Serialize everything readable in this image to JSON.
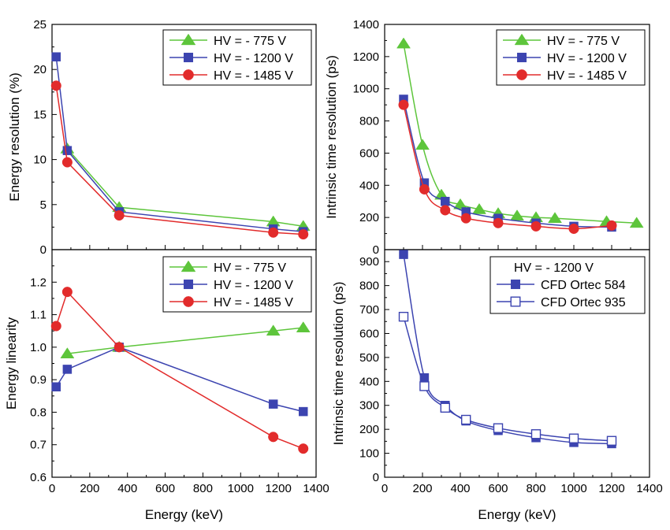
{
  "chart_data": [
    {
      "type": "line",
      "panel": "top-left",
      "xlabel": "",
      "ylabel": "Energy resolution (%)",
      "xlim": [
        0,
        1400
      ],
      "ylim": [
        0,
        25
      ],
      "x_ticks": [
        "0",
        "200",
        "400",
        "600",
        "800",
        "1000",
        "1200",
        "1400"
      ],
      "x_ticks_shown": false,
      "y_ticks": [
        "0",
        "5",
        "10",
        "15",
        "20",
        "25"
      ],
      "legend": "top-right",
      "series": [
        {
          "name": "HV = - 775 V",
          "color": "#5dc53b",
          "marker": "triangle",
          "x": [
            81,
            356,
            1173,
            1332
          ],
          "y": [
            11.2,
            4.7,
            3.1,
            2.6
          ]
        },
        {
          "name": "HV = - 1200 V",
          "color": "#3c44b0",
          "marker": "square",
          "x": [
            22,
            81,
            356,
            1173,
            1332
          ],
          "y": [
            21.4,
            11.0,
            4.2,
            2.3,
            2.0
          ]
        },
        {
          "name": "HV = - 1485 V",
          "color": "#e22b2b",
          "marker": "circle",
          "x": [
            22,
            81,
            356,
            1173,
            1332
          ],
          "y": [
            18.2,
            9.7,
            3.8,
            1.9,
            1.7
          ]
        }
      ]
    },
    {
      "type": "line",
      "panel": "top-right",
      "xlabel": "",
      "ylabel": "Intrinsic time resolution (ps)",
      "xlim": [
        0,
        1400
      ],
      "ylim": [
        0,
        1400
      ],
      "x_ticks": [
        "0",
        "200",
        "400",
        "600",
        "800",
        "1000",
        "1200",
        "1400"
      ],
      "x_ticks_shown": false,
      "y_ticks": [
        "0",
        "200",
        "400",
        "600",
        "800",
        "1000",
        "1200",
        "1400"
      ],
      "legend": "top-right",
      "series": [
        {
          "name": "HV = - 775 V",
          "color": "#5dc53b",
          "marker": "triangle",
          "x": [
            100,
            200,
            300,
            400,
            500,
            600,
            700,
            800,
            900,
            1173,
            1332
          ],
          "y": [
            1280,
            650,
            340,
            280,
            250,
            225,
            210,
            200,
            195,
            175,
            165
          ]
        },
        {
          "name": "HV = - 1200 V",
          "color": "#3c44b0",
          "marker": "square",
          "x": [
            100,
            210,
            320,
            430,
            600,
            800,
            1000,
            1200
          ],
          "y": [
            935,
            415,
            300,
            235,
            195,
            165,
            145,
            140
          ]
        },
        {
          "name": "HV = - 1485 V",
          "color": "#e22b2b",
          "marker": "circle",
          "x": [
            100,
            210,
            320,
            430,
            600,
            800,
            1000,
            1200
          ],
          "y": [
            900,
            375,
            245,
            195,
            165,
            145,
            130,
            150
          ]
        }
      ]
    },
    {
      "type": "line",
      "panel": "bottom-left",
      "xlabel": "Energy (keV)",
      "ylabel": "Energy linearity",
      "xlim": [
        0,
        1400
      ],
      "ylim": [
        0.6,
        1.3
      ],
      "x_ticks": [
        "0",
        "200",
        "400",
        "600",
        "800",
        "1000",
        "1200",
        "1400"
      ],
      "x_ticks_shown": true,
      "y_ticks": [
        "0.6",
        "0.7",
        "0.8",
        "0.9",
        "1.0",
        "1.1",
        "1.2"
      ],
      "legend": "top-right",
      "series": [
        {
          "name": "HV = - 775 V",
          "color": "#5dc53b",
          "marker": "triangle",
          "x": [
            81,
            356,
            1173,
            1332
          ],
          "y": [
            0.98,
            1.0,
            1.05,
            1.06
          ]
        },
        {
          "name": "HV = - 1200 V",
          "color": "#3c44b0",
          "marker": "square",
          "x": [
            22,
            81,
            356,
            1173,
            1332
          ],
          "y": [
            0.878,
            0.932,
            1.0,
            0.825,
            0.802
          ]
        },
        {
          "name": "HV = - 1485 V",
          "color": "#e22b2b",
          "marker": "circle",
          "x": [
            22,
            81,
            356,
            1173,
            1332
          ],
          "y": [
            1.065,
            1.17,
            1.0,
            0.724,
            0.688
          ]
        }
      ]
    },
    {
      "type": "line",
      "panel": "bottom-right",
      "xlabel": "Energy (keV)",
      "ylabel": "Intrinsic time resolution (ps)",
      "xlim": [
        0,
        1400
      ],
      "ylim": [
        0,
        950
      ],
      "x_ticks": [
        "0",
        "200",
        "400",
        "600",
        "800",
        "1000",
        "1200",
        "1400"
      ],
      "x_ticks_shown": true,
      "y_ticks": [
        "0",
        "100",
        "200",
        "300",
        "400",
        "500",
        "600",
        "700",
        "800",
        "900"
      ],
      "legend": "top-right",
      "legend_title": "HV = - 1200 V",
      "series": [
        {
          "name": "CFD Ortec 584",
          "color": "#3c44b0",
          "marker": "square",
          "filled": true,
          "x": [
            100,
            210,
            320,
            430,
            600,
            800,
            1000,
            1200
          ],
          "y": [
            930,
            415,
            300,
            235,
            195,
            165,
            145,
            140
          ]
        },
        {
          "name": "CFD Ortec 935",
          "color": "#3c44b0",
          "marker": "square",
          "filled": false,
          "x": [
            100,
            210,
            320,
            430,
            600,
            800,
            1000,
            1200
          ],
          "y": [
            670,
            380,
            290,
            240,
            205,
            180,
            162,
            152
          ]
        }
      ]
    }
  ]
}
